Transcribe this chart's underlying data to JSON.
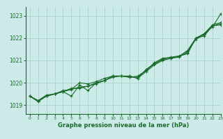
{
  "xlabel": "Graphe pression niveau de la mer (hPa)",
  "xlim": [
    -0.5,
    23
  ],
  "ylim": [
    1018.6,
    1023.4
  ],
  "yticks": [
    1019,
    1020,
    1021,
    1022,
    1023
  ],
  "xticks": [
    0,
    1,
    2,
    3,
    4,
    5,
    6,
    7,
    8,
    9,
    10,
    11,
    12,
    13,
    14,
    15,
    16,
    17,
    18,
    19,
    20,
    21,
    22,
    23
  ],
  "bg_color": "#cceae8",
  "line_color": "#1a6b2a",
  "grid_color": "#aad4cc",
  "lines": [
    [
      1019.4,
      1019.2,
      1019.4,
      1019.5,
      1019.6,
      1019.7,
      1019.8,
      1019.85,
      1020.0,
      1020.1,
      1020.3,
      1020.3,
      1020.3,
      1020.2,
      1020.5,
      1020.8,
      1021.0,
      1021.1,
      1021.2,
      1021.3,
      1022.0,
      1022.2,
      1022.5,
      1023.1
    ],
    [
      1019.4,
      1019.15,
      1019.4,
      1019.5,
      1019.6,
      1019.4,
      1019.9,
      1019.65,
      1020.0,
      1020.1,
      1020.3,
      1020.3,
      1020.3,
      1020.2,
      1020.6,
      1020.85,
      1021.05,
      1021.1,
      1021.2,
      1021.35,
      1022.0,
      1022.1,
      1022.55,
      1022.6
    ],
    [
      1019.4,
      1019.2,
      1019.4,
      1019.5,
      1019.65,
      1019.7,
      1020.0,
      1019.95,
      1020.05,
      1020.2,
      1020.3,
      1020.3,
      1020.25,
      1020.3,
      1020.55,
      1020.85,
      1021.05,
      1021.1,
      1021.15,
      1021.4,
      1021.95,
      1022.15,
      1022.55,
      1022.65
    ],
    [
      1019.4,
      1019.2,
      1019.45,
      1019.5,
      1019.6,
      1019.75,
      1019.75,
      1019.85,
      1019.95,
      1020.1,
      1020.25,
      1020.3,
      1020.25,
      1020.25,
      1020.55,
      1020.9,
      1021.1,
      1021.15,
      1021.2,
      1021.45,
      1022.0,
      1022.2,
      1022.6,
      1022.7
    ]
  ]
}
